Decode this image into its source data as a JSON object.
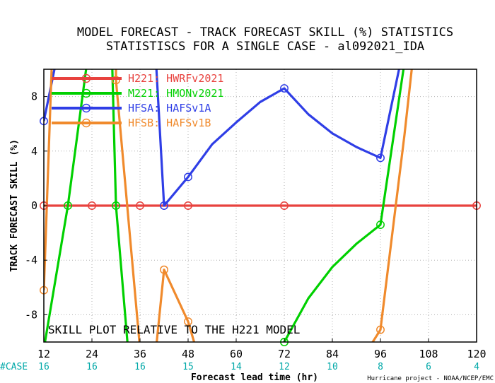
{
  "chart_data": {
    "type": "line",
    "title_line1": "MODEL FORECAST - TRACK FORECAST SKILL (%) STATISTICS",
    "title_line2": "STATISTISCS FOR A SINGLE CASE - al092021_IDA",
    "xlabel": "Forecast lead time (hr)",
    "ylabel": "TRACK FORECAST SKILL (%)",
    "xlim": [
      12,
      120
    ],
    "ylim": [
      -10,
      10
    ],
    "x_ticks": [
      12,
      24,
      36,
      48,
      60,
      72,
      84,
      96,
      108,
      120
    ],
    "y_ticks": [
      -8,
      -4,
      0,
      4,
      8
    ],
    "grid": true,
    "legend_position": "top-left",
    "case_count_label": "#CASE",
    "case_counts": [
      "16",
      "16",
      "16",
      "15",
      "14",
      "12",
      "10",
      "8",
      "6",
      "4"
    ],
    "annotation": "SKILL PLOT RELATIVE TO THE H221 MODEL",
    "credit": "Hurricane project - NOAA/NCEP/EMC",
    "series": [
      {
        "name": "H221: HWRFv2021",
        "color": "#e8423e",
        "points": [
          [
            12,
            0
          ],
          [
            18,
            0
          ],
          [
            24,
            0
          ],
          [
            30,
            0
          ],
          [
            36,
            0
          ],
          [
            42,
            0
          ],
          [
            48,
            0
          ],
          [
            54,
            0
          ],
          [
            60,
            0
          ],
          [
            66,
            0
          ],
          [
            72,
            0
          ],
          [
            78,
            0
          ],
          [
            84,
            0
          ],
          [
            90,
            0
          ],
          [
            96,
            0
          ],
          [
            102,
            0
          ],
          [
            108,
            0
          ],
          [
            114,
            0
          ],
          [
            120,
            0
          ]
        ],
        "markers": [
          [
            12,
            0
          ],
          [
            24,
            0
          ],
          [
            36,
            0
          ],
          [
            48,
            0
          ],
          [
            72,
            0
          ],
          [
            120,
            0
          ]
        ]
      },
      {
        "name": "M221: HMONv2021",
        "color": "#00d000",
        "points": [
          [
            12,
            -10.5
          ],
          [
            18,
            0
          ],
          [
            23,
            11
          ],
          [
            29,
            11
          ],
          [
            30,
            0
          ],
          [
            33,
            -10.5
          ],
          [
            70,
            -10.5
          ],
          [
            72,
            -10
          ],
          [
            78,
            -6.8
          ],
          [
            84,
            -4.5
          ],
          [
            90,
            -2.8
          ],
          [
            96,
            -1.4
          ],
          [
            102,
            10.5
          ]
        ],
        "markers": [
          [
            18,
            0
          ],
          [
            30,
            0
          ],
          [
            72,
            -10
          ],
          [
            96,
            -1.4
          ]
        ]
      },
      {
        "name": "HFSA: HAFSv1A",
        "color": "#2f3ee6",
        "points": [
          [
            12,
            6.2
          ],
          [
            15,
            10.5
          ],
          [
            40,
            10.5
          ],
          [
            42,
            0
          ],
          [
            48,
            2.1
          ],
          [
            54,
            4.5
          ],
          [
            60,
            6.1
          ],
          [
            66,
            7.6
          ],
          [
            72,
            8.6
          ],
          [
            78,
            6.7
          ],
          [
            84,
            5.3
          ],
          [
            90,
            4.3
          ],
          [
            96,
            3.5
          ],
          [
            101,
            10.5
          ]
        ],
        "markers": [
          [
            12,
            6.2
          ],
          [
            42,
            0
          ],
          [
            48,
            2.1
          ],
          [
            72,
            8.6
          ],
          [
            96,
            3.5
          ]
        ]
      },
      {
        "name": "HFSB: HAFSv1B",
        "color": "#f08a2c",
        "points": [
          [
            12,
            -6.2
          ],
          [
            14,
            10.5
          ],
          [
            30,
            10.5
          ],
          [
            30,
            9.2
          ],
          [
            36,
            -10.5
          ],
          [
            40,
            -10.5
          ],
          [
            42,
            -4.7
          ],
          [
            48,
            -8.5
          ],
          [
            50,
            -10.5
          ],
          [
            93,
            -10.5
          ],
          [
            96,
            -9.1
          ],
          [
            102,
            5.2
          ],
          [
            104,
            10.5
          ]
        ],
        "markers": [
          [
            12,
            -6.2
          ],
          [
            30,
            9.2
          ],
          [
            42,
            -4.7
          ],
          [
            48,
            -8.5
          ],
          [
            96,
            -9.1
          ]
        ]
      }
    ]
  }
}
